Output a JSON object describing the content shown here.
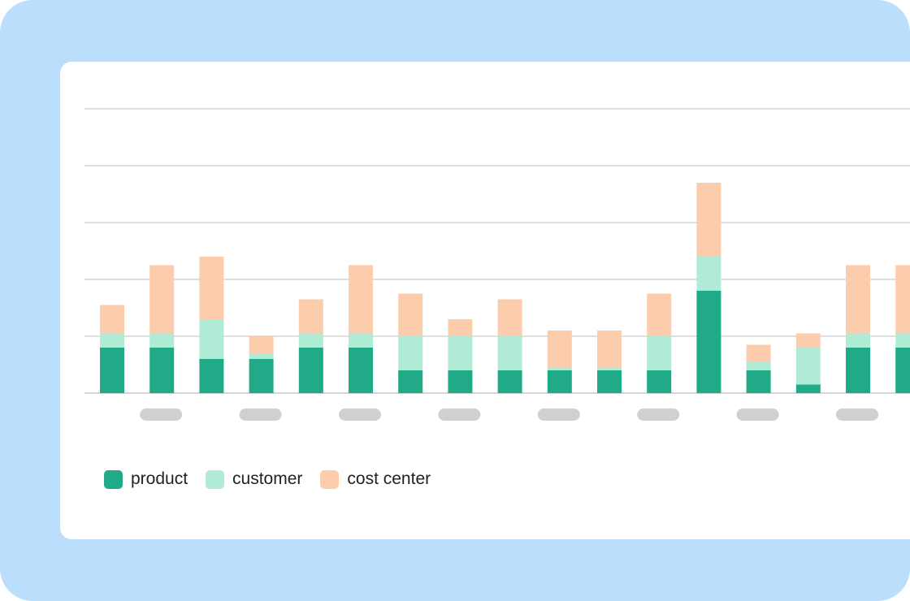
{
  "colors": {
    "background": "#BBDEFC",
    "card": "#FFFFFF",
    "gridline": "#BDBDBD",
    "tick_placeholder": "#D0D0D0",
    "product": "#21AA87",
    "customer": "#B0EBD6",
    "cost_center": "#FBCDAD"
  },
  "chart_data": {
    "type": "bar",
    "stacked": true,
    "grid": true,
    "legend_position": "bottom-left",
    "ylim": [
      0,
      5
    ],
    "x_tick_labels": "placeholder pills (no text), every other bar",
    "series": [
      {
        "name": "product",
        "values": [
          0.8,
          0.8,
          0.6,
          0.6,
          0.8,
          0.8,
          0.4,
          0.4,
          0.4,
          0.4,
          0.4,
          0.4,
          1.8,
          0.4,
          0.15,
          0.8,
          0.8
        ]
      },
      {
        "name": "customer",
        "values": [
          0.25,
          0.25,
          0.7,
          0.1,
          0.25,
          0.25,
          0.6,
          0.6,
          0.6,
          0.05,
          0.05,
          0.6,
          0.6,
          0.15,
          0.65,
          0.25,
          0.25
        ]
      },
      {
        "name": "cost center",
        "values": [
          0.5,
          1.2,
          1.1,
          0.3,
          0.6,
          1.2,
          0.75,
          0.3,
          0.65,
          0.65,
          0.65,
          0.75,
          1.3,
          0.3,
          0.25,
          1.2,
          1.2
        ]
      }
    ]
  },
  "legend": [
    {
      "label": "product",
      "color": "#21AA87"
    },
    {
      "label": "customer",
      "color": "#B0EBD6"
    },
    {
      "label": "cost center",
      "color": "#FBCDAD"
    }
  ]
}
